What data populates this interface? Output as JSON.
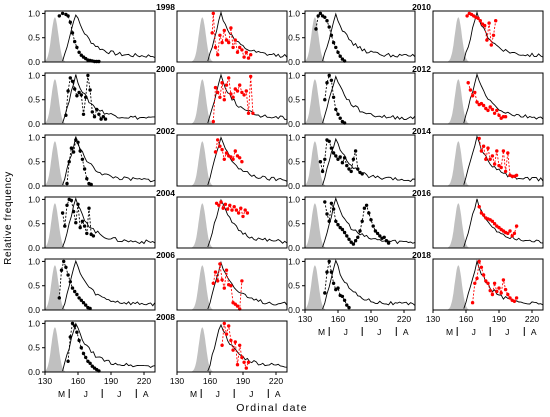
{
  "figure": {
    "ylabel": "Relative frequency",
    "xlabel": "Ordinal date",
    "yticks": [
      "0.0",
      "0.5",
      "1.0"
    ],
    "xticks": [
      "130",
      "160",
      "190",
      "220"
    ],
    "months": [
      "M",
      "J",
      "J",
      "A"
    ],
    "colors": {
      "black_series": "#000000",
      "red_series": "#ff0000",
      "shaded_area": "#c0c0c0",
      "frame": "#000000"
    }
  },
  "chart_data": {
    "type": "line",
    "xlim": [
      130,
      230
    ],
    "ylim": [
      0,
      1.05
    ],
    "month_boundaries": [
      152,
      182,
      213
    ],
    "column_groups": [
      {
        "years": [
          "1998",
          "2000",
          "2002",
          "2004",
          "2006",
          "2008"
        ]
      },
      {
        "years": [
          "2010",
          "2012",
          "2014",
          "2016",
          "2018"
        ]
      }
    ],
    "panels": [
      {
        "id": "p0",
        "year": "1998",
        "left_points": {
          "color": "black",
          "x": [
            143,
            146,
            149,
            151,
            153,
            155,
            157,
            159,
            161,
            163,
            165,
            167,
            169,
            171,
            173,
            175,
            177,
            179
          ],
          "y": [
            0.95,
            1.0,
            0.98,
            0.95,
            0.82,
            0.6,
            0.42,
            0.3,
            0.2,
            0.14,
            0.1,
            0.07,
            0.04,
            0.03,
            0.02,
            0.01,
            0.01,
            0.01
          ]
        },
        "right_points": {
          "color": "red",
          "x": [
            162,
            163,
            165,
            167,
            169,
            171,
            173,
            175,
            177,
            179,
            181,
            183,
            185,
            187,
            189,
            191,
            193,
            195,
            197
          ],
          "y": [
            0.6,
            1.0,
            0.3,
            0.15,
            0.55,
            0.4,
            0.65,
            0.45,
            0.4,
            0.7,
            0.3,
            0.45,
            0.2,
            0.3,
            0.25,
            0.1,
            0.2,
            0.08,
            0.15
          ]
        }
      },
      {
        "id": "p1",
        "year": "2000",
        "left_points": {
          "color": "black",
          "x": [
            149,
            151,
            153,
            155,
            157,
            159,
            161,
            163,
            165,
            167,
            169,
            171,
            173,
            175,
            177,
            179,
            181,
            183,
            185
          ],
          "y": [
            0.18,
            0.68,
            0.95,
            0.88,
            0.72,
            0.58,
            0.65,
            0.6,
            0.2,
            0.55,
            1.0,
            0.7,
            0.25,
            0.15,
            0.3,
            0.2,
            0.1,
            0.15,
            0.1
          ]
        },
        "right_points": {
          "color": "red",
          "x": [
            163,
            165,
            167,
            169,
            171,
            173,
            175,
            177,
            179,
            181,
            183,
            185,
            187,
            189,
            191,
            193,
            195,
            197,
            199
          ],
          "y": [
            0.05,
            0.75,
            0.65,
            0.55,
            0.85,
            0.5,
            0.8,
            0.95,
            0.62,
            0.55,
            0.72,
            0.68,
            0.8,
            0.65,
            0.6,
            0.68,
            0.22,
            0.98,
            0.22
          ]
        }
      },
      {
        "id": "p2",
        "year": "2002",
        "left_points": {
          "color": "black",
          "x": [
            150,
            152,
            154,
            156,
            158,
            160,
            162,
            164,
            166,
            168,
            170,
            172
          ],
          "y": [
            0.05,
            0.5,
            0.78,
            0.7,
            0.95,
            0.9,
            0.72,
            0.55,
            0.35,
            0.15,
            0.05,
            0.03
          ]
        },
        "right_points": {
          "color": "red",
          "x": [
            165,
            167,
            169,
            171,
            173,
            175,
            177,
            179,
            181,
            183,
            185,
            187,
            189
          ],
          "y": [
            0.7,
            0.95,
            0.82,
            0.75,
            0.55,
            0.68,
            0.62,
            0.6,
            0.55,
            0.72,
            0.62,
            0.58,
            0.5
          ]
        }
      },
      {
        "id": "p3",
        "year": "2004",
        "left_points": {
          "color": "black",
          "x": [
            146,
            148,
            150,
            152,
            154,
            156,
            158,
            160,
            162,
            164,
            166,
            168,
            170,
            172,
            174
          ],
          "y": [
            0.72,
            0.45,
            0.88,
            1.0,
            0.98,
            0.75,
            0.52,
            0.9,
            0.42,
            0.55,
            0.45,
            0.3,
            0.82,
            0.28,
            0.25
          ]
        },
        "right_points": {
          "color": "red",
          "x": [
            166,
            168,
            170,
            172,
            174,
            176,
            178,
            180,
            182,
            184,
            186,
            188,
            190,
            192,
            194
          ],
          "y": [
            0.92,
            0.88,
            0.95,
            0.82,
            0.9,
            0.8,
            0.88,
            0.78,
            0.85,
            0.78,
            0.72,
            0.82,
            0.65,
            0.78,
            0.72
          ]
        }
      },
      {
        "id": "p4",
        "year": "2006",
        "left_points": {
          "color": "black",
          "x": [
            143,
            145,
            147,
            149,
            151,
            153,
            155,
            157,
            159,
            161,
            163,
            165,
            167,
            169,
            171
          ],
          "y": [
            0.25,
            0.82,
            1.0,
            0.88,
            0.72,
            0.58,
            0.45,
            0.38,
            0.32,
            0.25,
            0.2,
            0.15,
            0.1,
            0.05,
            0.03
          ]
        },
        "right_points": {
          "color": "red",
          "x": [
            163,
            165,
            167,
            169,
            171,
            173,
            175,
            177,
            179,
            181,
            183,
            185,
            187,
            189
          ],
          "y": [
            0.55,
            0.78,
            0.6,
            0.95,
            0.62,
            0.45,
            0.82,
            0.52,
            0.5,
            0.15,
            0.12,
            0.08,
            0.02,
            0.6
          ]
        }
      },
      {
        "id": "p5",
        "year": "2008",
        "left_points": {
          "color": "black",
          "x": [
            151,
            153,
            155,
            157,
            159,
            161,
            163,
            165,
            167,
            169,
            171,
            173,
            175,
            177,
            179
          ],
          "y": [
            0.22,
            0.72,
            1.0,
            0.95,
            0.82,
            0.65,
            0.5,
            0.38,
            0.3,
            0.22,
            0.18,
            0.12,
            0.08,
            0.05,
            0.02
          ]
        },
        "right_points": {
          "color": "red",
          "x": [
            171,
            173,
            175,
            177,
            179,
            181,
            183,
            185,
            187,
            189,
            191,
            193,
            195
          ],
          "y": [
            0.55,
            1.0,
            0.78,
            0.95,
            0.65,
            0.45,
            0.62,
            0.15,
            0.55,
            0.3,
            0.2,
            0.08,
            0.2
          ]
        }
      },
      {
        "id": "p6",
        "year": "2010",
        "left_points": {
          "color": "black",
          "x": [
            140,
            142,
            144,
            146,
            148,
            150,
            152,
            154,
            156,
            158,
            160,
            162,
            164,
            166
          ],
          "y": [
            0.68,
            0.95,
            1.0,
            0.95,
            0.92,
            0.85,
            0.72,
            0.55,
            0.4,
            0.3,
            0.2,
            0.12,
            0.06,
            0.02
          ]
        },
        "right_points": {
          "color": "red",
          "x": [
            161,
            163,
            165,
            167,
            169,
            171,
            173,
            175,
            177,
            179,
            181,
            183,
            185,
            187
          ],
          "y": [
            0.95,
            1.0,
            0.98,
            0.95,
            0.92,
            0.9,
            0.85,
            0.78,
            0.75,
            0.45,
            0.8,
            0.35,
            0.55,
            0.85
          ]
        }
      },
      {
        "id": "p7",
        "year": "2012",
        "left_points": {
          "color": "black",
          "x": [
            148,
            150,
            152,
            154,
            156,
            158,
            160,
            162,
            164,
            166
          ],
          "y": [
            0.5,
            0.85,
            1.0,
            0.9,
            0.55,
            0.3,
            0.2,
            0.12,
            0.05,
            0.02
          ]
        },
        "right_points": {
          "color": "red",
          "x": [
            162,
            164,
            166,
            168,
            170,
            172,
            174,
            176,
            178,
            180,
            182,
            184,
            186,
            188,
            190,
            192,
            194,
            196
          ],
          "y": [
            0.85,
            0.7,
            0.58,
            0.65,
            0.45,
            0.4,
            0.42,
            0.38,
            0.32,
            0.28,
            0.35,
            0.3,
            0.22,
            0.28,
            0.18,
            0.12,
            0.15,
            0.15
          ]
        }
      },
      {
        "id": "p8",
        "year": "2014",
        "left_points": {
          "color": "black",
          "x": [
            144,
            146,
            148,
            150,
            152,
            154,
            156,
            158,
            160,
            162,
            164,
            166,
            168,
            170,
            172,
            174,
            176,
            178,
            180,
            182
          ],
          "y": [
            0.5,
            0.3,
            0.55,
            0.95,
            0.92,
            0.78,
            0.68,
            0.62,
            0.55,
            0.6,
            0.48,
            0.58,
            0.42,
            0.35,
            0.3,
            0.55,
            0.72,
            0.35,
            0.28,
            0.25
          ]
        },
        "right_points": {
          "color": "red",
          "x": [
            172,
            174,
            176,
            178,
            180,
            182,
            184,
            186,
            188,
            190,
            192,
            194,
            196,
            198,
            200,
            202,
            204,
            206
          ],
          "y": [
            0.98,
            0.72,
            0.82,
            0.55,
            0.78,
            0.55,
            0.62,
            0.45,
            0.72,
            0.42,
            0.38,
            0.72,
            0.3,
            0.68,
            0.22,
            0.2,
            0.2,
            0.22
          ]
        }
      },
      {
        "id": "p9",
        "year": "2016",
        "left_points": {
          "color": "black",
          "x": [
            148,
            150,
            152,
            154,
            156,
            158,
            160,
            162,
            164,
            166,
            168,
            170,
            172,
            174,
            176,
            178,
            180,
            182,
            184,
            186,
            188,
            190,
            192,
            194,
            196,
            198,
            200,
            202,
            204,
            206
          ],
          "y": [
            0.95,
            0.7,
            0.55,
            0.92,
            0.8,
            0.55,
            0.48,
            0.42,
            0.38,
            0.32,
            0.25,
            0.18,
            0.12,
            0.08,
            0.15,
            0.22,
            0.35,
            0.55,
            0.82,
            0.88,
            0.72,
            0.58,
            0.45,
            0.35,
            0.3,
            0.25,
            0.2,
            0.22,
            0.15,
            0.1
          ]
        },
        "right_points": {
          "color": "red",
          "x": [
            172,
            174,
            176,
            178,
            180,
            182,
            184,
            186,
            188,
            190,
            192,
            194,
            196,
            198,
            200,
            202,
            204,
            206
          ],
          "y": [
            0.85,
            0.72,
            0.68,
            0.62,
            0.6,
            0.58,
            0.55,
            0.5,
            0.45,
            0.42,
            0.38,
            0.35,
            0.32,
            0.3,
            0.35,
            0.25,
            0.3,
            0.45
          ]
        }
      },
      {
        "id": "p10",
        "year": "2018",
        "left_points": {
          "color": "black",
          "x": [
            148,
            150,
            152,
            154,
            156,
            158,
            160,
            162,
            164,
            166,
            168,
            170
          ],
          "y": [
            0.35,
            0.78,
            1.0,
            0.78,
            0.55,
            0.42,
            0.45,
            0.3,
            0.28,
            0.2,
            0.1,
            0.05
          ]
        },
        "right_points": {
          "color": "red",
          "x": [
            166,
            168,
            170,
            172,
            174,
            176,
            178,
            180,
            182,
            184,
            186,
            188,
            190,
            192,
            194,
            196,
            198,
            200,
            202,
            204,
            206
          ],
          "y": [
            0.15,
            0.55,
            0.65,
            1.0,
            0.88,
            0.72,
            0.6,
            0.55,
            0.4,
            0.32,
            0.55,
            0.38,
            0.45,
            0.35,
            0.62,
            0.42,
            0.32,
            0.25,
            0.2,
            0.18,
            0.25
          ]
        }
      }
    ]
  }
}
